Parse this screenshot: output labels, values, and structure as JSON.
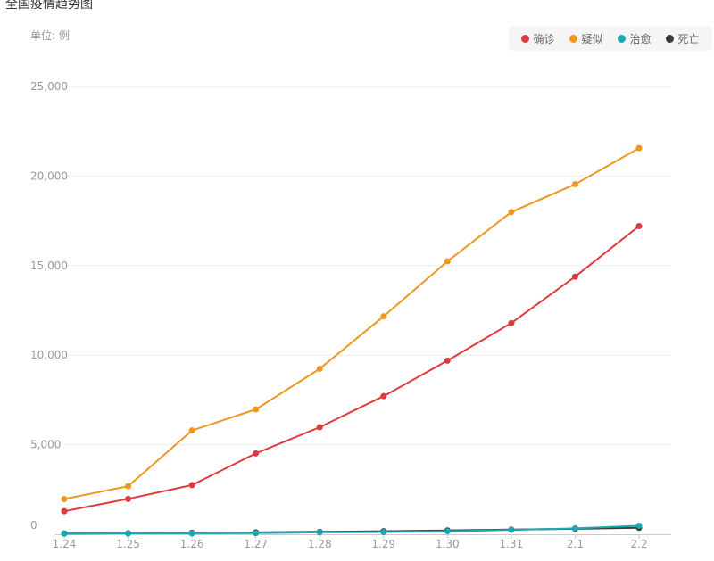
{
  "chart_data": {
    "type": "line",
    "title": "全国疫情趋势图",
    "unit_label": "单位: 例",
    "categories": [
      "1.24",
      "1.25",
      "1.26",
      "1.27",
      "1.28",
      "1.29",
      "1.30",
      "1.31",
      "2.1",
      "2.2"
    ],
    "ylim": [
      0,
      25000
    ],
    "yticks": [
      0,
      5000,
      10000,
      15000,
      20000,
      25000
    ],
    "ytick_labels": [
      "0",
      "5,000",
      "10,000",
      "15,000",
      "20,000",
      "25,000"
    ],
    "grid": true,
    "legend_position": "top-right",
    "series": [
      {
        "name": "确诊",
        "color": "#e0393e",
        "values": [
          1287,
          1975,
          2744,
          4515,
          5974,
          7711,
          9692,
          11791,
          14380,
          17205
        ]
      },
      {
        "name": "疑似",
        "color": "#ee9722",
        "values": [
          1965,
          2684,
          5794,
          6973,
          9239,
          12167,
          15238,
          17988,
          19544,
          21558
        ]
      },
      {
        "name": "治愈",
        "color": "#1ba8b2",
        "values": [
          38,
          49,
          51,
          60,
          103,
          124,
          171,
          243,
          328,
          475
        ]
      },
      {
        "name": "死亡",
        "color": "#3c3c3c",
        "values": [
          41,
          56,
          80,
          106,
          132,
          170,
          213,
          259,
          304,
          361
        ]
      }
    ]
  }
}
